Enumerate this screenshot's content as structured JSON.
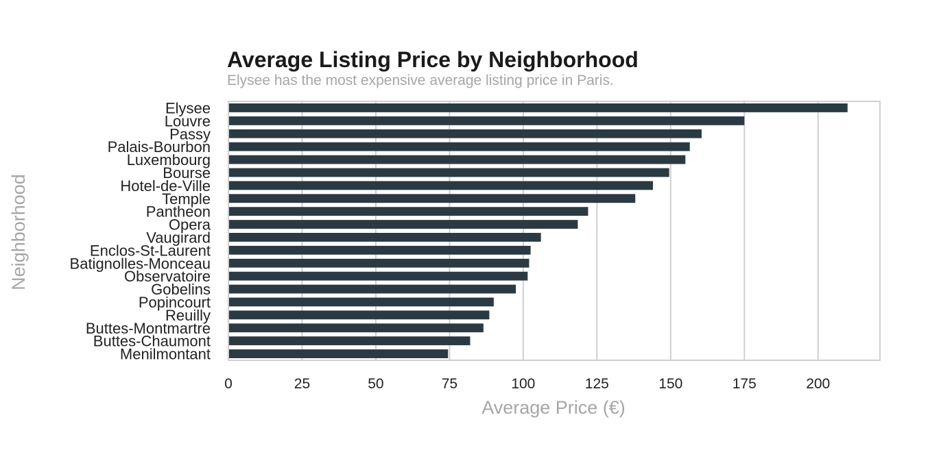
{
  "chart_data": {
    "type": "bar",
    "orientation": "horizontal",
    "title": "Average Listing Price by Neighborhood",
    "subtitle": "Elysee has the most expensive average listing price in Paris.",
    "xlabel": "Average Price (€)",
    "ylabel": "Neighborhood",
    "xlim": [
      0,
      221
    ],
    "xticks": [
      0,
      25,
      50,
      75,
      100,
      125,
      150,
      175,
      200
    ],
    "grid": true,
    "bar_color": "#2b3a42",
    "categories": [
      "Elysee",
      "Louvre",
      "Passy",
      "Palais-Bourbon",
      "Luxembourg",
      "Bourse",
      "Hotel-de-Ville",
      "Temple",
      "Pantheon",
      "Opera",
      "Vaugirard",
      "Enclos-St-Laurent",
      "Batignolles-Monceau",
      "Observatoire",
      "Gobelins",
      "Popincourt",
      "Reuilly",
      "Buttes-Montmartre",
      "Buttes-Chaumont",
      "Menilmontant"
    ],
    "values": [
      210,
      175,
      160.5,
      156.5,
      155,
      149.5,
      144,
      138,
      122,
      118.5,
      106,
      102.5,
      102,
      101.5,
      97.5,
      90,
      88.5,
      86.5,
      82,
      74.5
    ]
  }
}
